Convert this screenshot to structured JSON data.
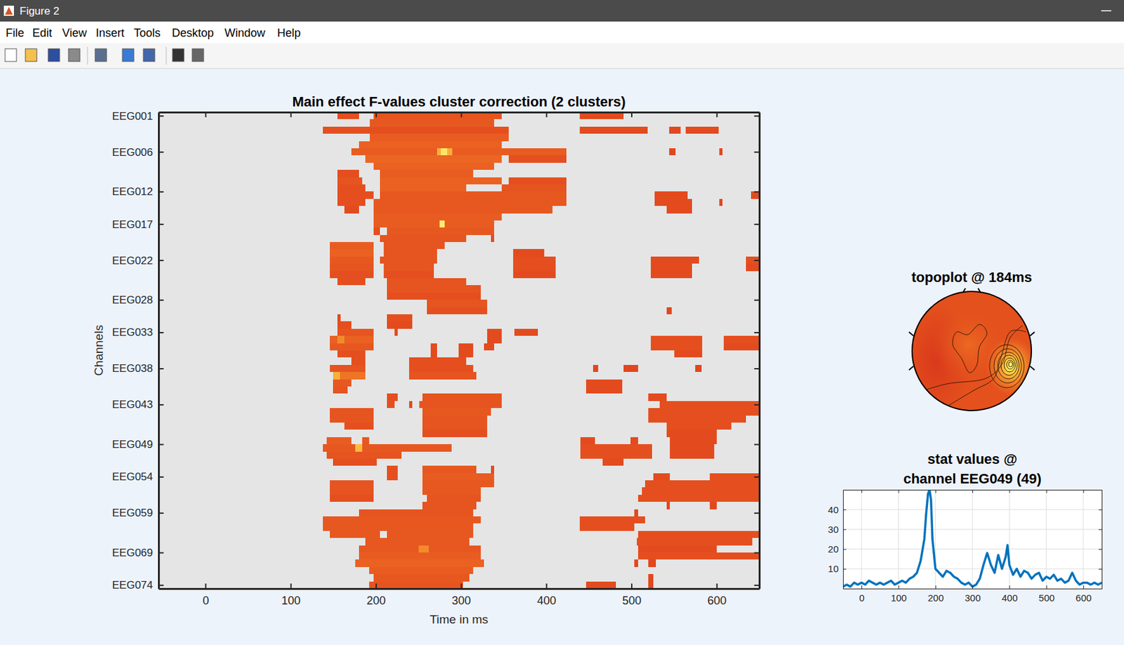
{
  "window": {
    "title": "Figure 2",
    "menu": [
      "File",
      "Edit",
      "View",
      "Insert",
      "Tools",
      "Desktop",
      "Window",
      "Help"
    ]
  },
  "chart_data": [
    {
      "type": "heatmap",
      "title": "Main effect F-values cluster correction (2 clusters)",
      "x_label": "Time in ms",
      "y_label": "Channels",
      "xlim": [
        -55,
        650
      ],
      "xticks": [
        0,
        100,
        200,
        300,
        400,
        500,
        600
      ],
      "ylim": [
        0.5,
        66.5
      ],
      "yticks": [
        {
          "value": 1,
          "label": "EEG001"
        },
        {
          "value": 6,
          "label": "EEG006"
        },
        {
          "value": 11.5,
          "label": "EEG012"
        },
        {
          "value": 16,
          "label": "EEG017"
        },
        {
          "value": 21,
          "label": "EEG022"
        },
        {
          "value": 26.5,
          "label": "EEG028"
        },
        {
          "value": 31,
          "label": "EEG033"
        },
        {
          "value": 36,
          "label": "EEG038"
        },
        {
          "value": 41,
          "label": "EEG043"
        },
        {
          "value": 46.5,
          "label": "EEG049"
        },
        {
          "value": 51,
          "label": "EEG054"
        },
        {
          "value": 56,
          "label": "EEG059"
        },
        {
          "value": 61.5,
          "label": "EEG069"
        },
        {
          "value": 66,
          "label": "EEG074"
        }
      ],
      "clim": [
        0,
        45
      ],
      "cells": [
        [
          1,
          155,
          180,
          10
        ],
        [
          1,
          197,
          348,
          11
        ],
        [
          1,
          439,
          491,
          9
        ],
        [
          2,
          193,
          339,
          12
        ],
        [
          3,
          138,
          356,
          10
        ],
        [
          3,
          439,
          519,
          9
        ],
        [
          3,
          544,
          558,
          8
        ],
        [
          3,
          564,
          602,
          9
        ],
        [
          4,
          193,
          356,
          13
        ],
        [
          5,
          180,
          348,
          14
        ],
        [
          6,
          171,
          424,
          13
        ],
        [
          6,
          544,
          552,
          8
        ],
        [
          6,
          603,
          607,
          8
        ],
        [
          6,
          272,
          290,
          28
        ],
        [
          6,
          276,
          284,
          38
        ],
        [
          7,
          188,
          348,
          15
        ],
        [
          7,
          356,
          424,
          10
        ],
        [
          8,
          197,
          339,
          14
        ],
        [
          9,
          155,
          180,
          10
        ],
        [
          9,
          205,
          314,
          13
        ],
        [
          10,
          155,
          184,
          11
        ],
        [
          10,
          205,
          348,
          14
        ],
        [
          10,
          356,
          424,
          10
        ],
        [
          11,
          155,
          188,
          10
        ],
        [
          11,
          205,
          306,
          14
        ],
        [
          11,
          348,
          424,
          11
        ],
        [
          12,
          155,
          197,
          10
        ],
        [
          12,
          205,
          424,
          12
        ],
        [
          12,
          527,
          566,
          9
        ],
        [
          12,
          640,
          649,
          9
        ],
        [
          13,
          155,
          188,
          10
        ],
        [
          13,
          197,
          424,
          12
        ],
        [
          13,
          527,
          571,
          9
        ],
        [
          13,
          603,
          607,
          8
        ],
        [
          14,
          163,
          180,
          9
        ],
        [
          14,
          197,
          407,
          12
        ],
        [
          14,
          541,
          571,
          9
        ],
        [
          15,
          197,
          348,
          13
        ],
        [
          16,
          197,
          339,
          13
        ],
        [
          16,
          275,
          281,
          40
        ],
        [
          17,
          197,
          205,
          10
        ],
        [
          17,
          213,
          339,
          12
        ],
        [
          18,
          205,
          306,
          11
        ],
        [
          18,
          335,
          339,
          9
        ],
        [
          19,
          146,
          197,
          13
        ],
        [
          19,
          209,
          281,
          11
        ],
        [
          20,
          146,
          197,
          14
        ],
        [
          20,
          209,
          272,
          11
        ],
        [
          20,
          361,
          398,
          9
        ],
        [
          21,
          146,
          197,
          12
        ],
        [
          21,
          205,
          272,
          11
        ],
        [
          21,
          361,
          411,
          10
        ],
        [
          21,
          523,
          579,
          9
        ],
        [
          21,
          634,
          649,
          10
        ],
        [
          22,
          146,
          197,
          11
        ],
        [
          22,
          209,
          268,
          11
        ],
        [
          22,
          361,
          411,
          10
        ],
        [
          22,
          523,
          571,
          9
        ],
        [
          22,
          634,
          649,
          9
        ],
        [
          23,
          146,
          197,
          10
        ],
        [
          23,
          209,
          268,
          10
        ],
        [
          23,
          361,
          411,
          9
        ],
        [
          23,
          523,
          571,
          9
        ],
        [
          24,
          155,
          188,
          10
        ],
        [
          24,
          213,
          306,
          11
        ],
        [
          25,
          213,
          323,
          11
        ],
        [
          26,
          213,
          323,
          10
        ],
        [
          27,
          260,
          331,
          11
        ],
        [
          28,
          260,
          331,
          10
        ],
        [
          28,
          541,
          547,
          8
        ],
        [
          29,
          155,
          159,
          9
        ],
        [
          29,
          213,
          243,
          10
        ],
        [
          30,
          155,
          171,
          10
        ],
        [
          30,
          213,
          243,
          9
        ],
        [
          31,
          155,
          197,
          11
        ],
        [
          31,
          222,
          226,
          9
        ],
        [
          31,
          331,
          348,
          9
        ],
        [
          31,
          363,
          390,
          9
        ],
        [
          32,
          146,
          197,
          14
        ],
        [
          32,
          155,
          163,
          22
        ],
        [
          32,
          331,
          348,
          9
        ],
        [
          32,
          523,
          583,
          10
        ],
        [
          32,
          608,
          649,
          10
        ],
        [
          33,
          146,
          197,
          12
        ],
        [
          33,
          264,
          272,
          9
        ],
        [
          33,
          297,
          314,
          9
        ],
        [
          33,
          327,
          339,
          9
        ],
        [
          33,
          523,
          583,
          10
        ],
        [
          33,
          608,
          649,
          9
        ],
        [
          34,
          155,
          188,
          10
        ],
        [
          34,
          264,
          272,
          9
        ],
        [
          34,
          297,
          314,
          9
        ],
        [
          34,
          550,
          583,
          9
        ],
        [
          35,
          171,
          188,
          10
        ],
        [
          35,
          239,
          306,
          10
        ],
        [
          36,
          146,
          188,
          11
        ],
        [
          36,
          239,
          314,
          10
        ],
        [
          36,
          455,
          461,
          8
        ],
        [
          36,
          491,
          508,
          8
        ],
        [
          36,
          575,
          582,
          8
        ],
        [
          37,
          150,
          188,
          18
        ],
        [
          37,
          239,
          318,
          11
        ],
        [
          37,
          150,
          158,
          28
        ],
        [
          38,
          150,
          171,
          12
        ],
        [
          38,
          447,
          489,
          9
        ],
        [
          39,
          150,
          167,
          11
        ],
        [
          39,
          447,
          489,
          9
        ],
        [
          40,
          213,
          226,
          10
        ],
        [
          40,
          255,
          348,
          11
        ],
        [
          40,
          520,
          541,
          9
        ],
        [
          41,
          213,
          222,
          10
        ],
        [
          41,
          239,
          243,
          9
        ],
        [
          41,
          251,
          348,
          11
        ],
        [
          41,
          533,
          649,
          10
        ],
        [
          42,
          146,
          197,
          11
        ],
        [
          42,
          255,
          335,
          12
        ],
        [
          42,
          520,
          649,
          10
        ],
        [
          43,
          146,
          197,
          11
        ],
        [
          43,
          255,
          331,
          11
        ],
        [
          43,
          520,
          634,
          10
        ],
        [
          44,
          163,
          197,
          10
        ],
        [
          44,
          255,
          331,
          11
        ],
        [
          44,
          541,
          617,
          10
        ],
        [
          45,
          255,
          331,
          10
        ],
        [
          45,
          541,
          600,
          9
        ],
        [
          46,
          142,
          171,
          13
        ],
        [
          46,
          184,
          192,
          12
        ],
        [
          46,
          440,
          457,
          9
        ],
        [
          46,
          499,
          508,
          9
        ],
        [
          46,
          545,
          600,
          9
        ],
        [
          47,
          138,
          289,
          12
        ],
        [
          47,
          440,
          524,
          10
        ],
        [
          47,
          545,
          597,
          9
        ],
        [
          47,
          176,
          184,
          30
        ],
        [
          48,
          142,
          230,
          11
        ],
        [
          48,
          440,
          524,
          10
        ],
        [
          48,
          545,
          597,
          9
        ],
        [
          49,
          150,
          201,
          10
        ],
        [
          49,
          466,
          491,
          9
        ],
        [
          50,
          213,
          226,
          10
        ],
        [
          50,
          255,
          318,
          12
        ],
        [
          50,
          335,
          339,
          9
        ],
        [
          51,
          213,
          226,
          10
        ],
        [
          51,
          255,
          339,
          13
        ],
        [
          51,
          526,
          545,
          9
        ],
        [
          51,
          592,
          649,
          10
        ],
        [
          52,
          146,
          197,
          11
        ],
        [
          52,
          255,
          339,
          12
        ],
        [
          52,
          516,
          649,
          10
        ],
        [
          53,
          146,
          197,
          11
        ],
        [
          53,
          255,
          323,
          12
        ],
        [
          53,
          512,
          649,
          10
        ],
        [
          54,
          146,
          197,
          10
        ],
        [
          54,
          260,
          323,
          11
        ],
        [
          54,
          508,
          649,
          10
        ],
        [
          55,
          255,
          318,
          11
        ],
        [
          55,
          541,
          545,
          8
        ],
        [
          55,
          592,
          600,
          8
        ],
        [
          56,
          180,
          314,
          11
        ],
        [
          56,
          503,
          508,
          8
        ],
        [
          57,
          138,
          323,
          12
        ],
        [
          57,
          439,
          516,
          10
        ],
        [
          58,
          138,
          314,
          12
        ],
        [
          58,
          439,
          503,
          10
        ],
        [
          59,
          146,
          205,
          12
        ],
        [
          59,
          213,
          314,
          12
        ],
        [
          59,
          508,
          649,
          10
        ],
        [
          60,
          188,
          310,
          12
        ],
        [
          60,
          506,
          642,
          10
        ],
        [
          61,
          180,
          323,
          12
        ],
        [
          61,
          250,
          262,
          22
        ],
        [
          61,
          508,
          600,
          9
        ],
        [
          62,
          180,
          323,
          13
        ],
        [
          62,
          508,
          649,
          10
        ],
        [
          63,
          176,
          327,
          14
        ],
        [
          63,
          503,
          508,
          8
        ],
        [
          63,
          520,
          529,
          8
        ],
        [
          64,
          192,
          314,
          13
        ],
        [
          65,
          197,
          310,
          12
        ],
        [
          65,
          520,
          526,
          8
        ],
        [
          66,
          192,
          302,
          11
        ],
        [
          66,
          447,
          482,
          9
        ],
        [
          66,
          520,
          526,
          8
        ]
      ]
    },
    {
      "type": "topoplot",
      "title": "topoplot @ 184ms"
    },
    {
      "type": "line",
      "title": [
        "stat values @",
        "channel EEG049 (49)"
      ],
      "xlim": [
        -50,
        650
      ],
      "xticks": [
        0,
        100,
        200,
        300,
        400,
        500,
        600
      ],
      "ylim": [
        0,
        50
      ],
      "yticks": [
        10,
        20,
        30,
        40
      ],
      "grid": true,
      "color": "#0072bd",
      "x": [
        -50,
        -40,
        -30,
        -20,
        -10,
        0,
        10,
        20,
        30,
        40,
        50,
        60,
        70,
        80,
        90,
        100,
        110,
        120,
        130,
        140,
        150,
        160,
        170,
        175,
        180,
        184,
        188,
        192,
        200,
        210,
        220,
        230,
        240,
        250,
        260,
        270,
        280,
        290,
        300,
        310,
        320,
        330,
        340,
        350,
        360,
        370,
        380,
        390,
        395,
        400,
        410,
        420,
        430,
        440,
        450,
        460,
        470,
        480,
        490,
        500,
        510,
        520,
        530,
        540,
        550,
        560,
        570,
        580,
        590,
        600,
        610,
        620,
        630,
        640,
        650
      ],
      "values": [
        1,
        2,
        1,
        3,
        2,
        3,
        2,
        4,
        3,
        2,
        3,
        2,
        3,
        4,
        2,
        3,
        4,
        3,
        5,
        6,
        8,
        14,
        25,
        38,
        48,
        50,
        45,
        25,
        10,
        8,
        6,
        9,
        8,
        6,
        5,
        3,
        2,
        3,
        1,
        2,
        5,
        12,
        18,
        12,
        8,
        17,
        10,
        16,
        22,
        12,
        7,
        10,
        6,
        9,
        8,
        5,
        7,
        8,
        4,
        6,
        5,
        7,
        4,
        5,
        3,
        4,
        8,
        4,
        2,
        3,
        3,
        2,
        3,
        2,
        3
      ]
    }
  ]
}
